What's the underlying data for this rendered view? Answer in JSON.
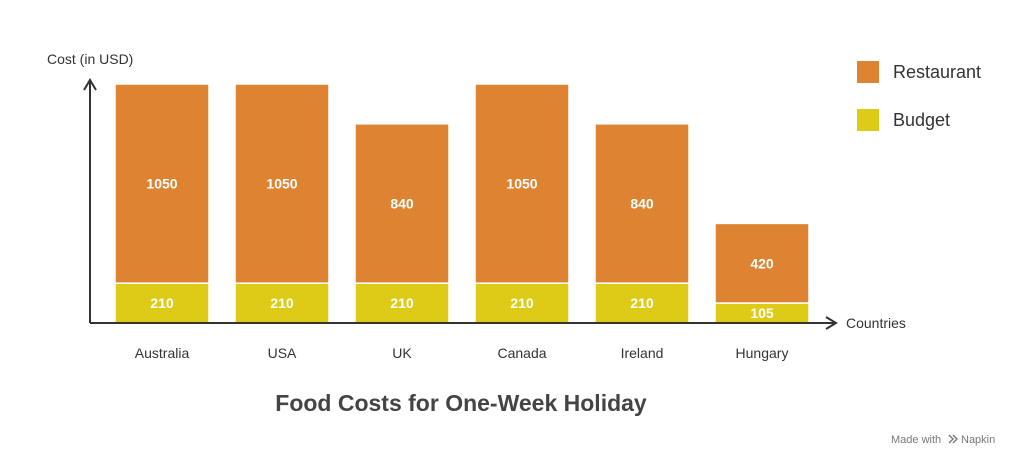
{
  "chart_data": {
    "type": "bar",
    "stacked": true,
    "title": "Food Costs for One-Week Holiday",
    "xlabel": "Countries",
    "ylabel": "Cost (in USD)",
    "categories": [
      "Australia",
      "USA",
      "UK",
      "Canada",
      "Ireland",
      "Hungary"
    ],
    "series": [
      {
        "name": "Budget",
        "values": [
          210,
          210,
          210,
          210,
          210,
          105
        ],
        "color": "#DDCB17"
      },
      {
        "name": "Restaurant",
        "values": [
          1050,
          1050,
          840,
          1050,
          840,
          420
        ],
        "color": "#DE8331"
      }
    ],
    "legend": [
      "Restaurant",
      "Budget"
    ],
    "legend_position": "top-right",
    "grid": false
  },
  "footer": {
    "made_with": "Made with",
    "brand": "Napkin"
  }
}
